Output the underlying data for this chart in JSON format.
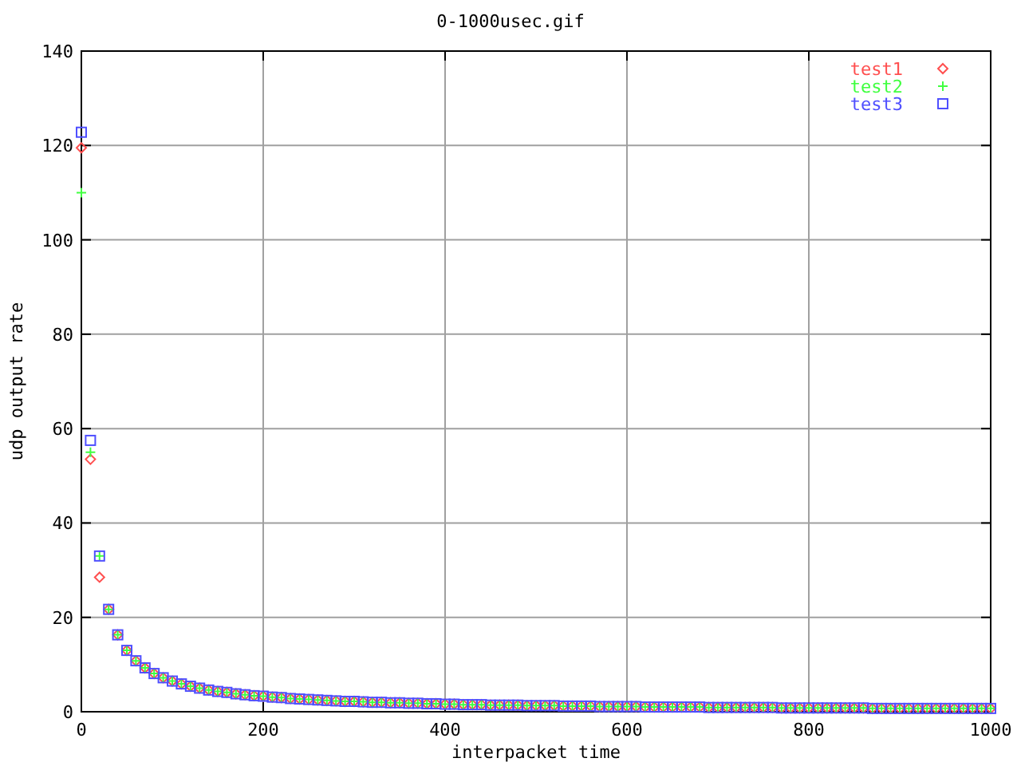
{
  "chart_data": {
    "type": "scatter",
    "title": "0-1000usec.gif",
    "xlabel": "interpacket time",
    "ylabel": "udp output rate",
    "x": [
      0,
      10,
      20,
      30,
      40,
      50,
      60,
      70,
      80,
      90,
      100,
      110,
      120,
      130,
      140,
      150,
      160,
      170,
      180,
      190,
      200,
      210,
      220,
      230,
      240,
      250,
      260,
      270,
      280,
      290,
      300,
      310,
      320,
      330,
      340,
      350,
      360,
      370,
      380,
      390,
      400,
      410,
      420,
      430,
      440,
      450,
      460,
      470,
      480,
      490,
      500,
      510,
      520,
      530,
      540,
      550,
      560,
      570,
      580,
      590,
      600,
      610,
      620,
      630,
      640,
      650,
      660,
      670,
      680,
      690,
      700,
      710,
      720,
      730,
      740,
      750,
      760,
      770,
      780,
      790,
      800,
      810,
      820,
      830,
      840,
      850,
      860,
      870,
      880,
      890,
      900,
      910,
      920,
      930,
      940,
      950,
      960,
      970,
      980,
      990,
      1000
    ],
    "series": [
      {
        "name": "test1",
        "color": "#ff4f4f",
        "marker": "diamond",
        "values": [
          119.5,
          53.5,
          28.5,
          21.7,
          16.3,
          13.0,
          10.8,
          9.3,
          8.1,
          7.2,
          6.5,
          5.9,
          5.4,
          5.0,
          4.6,
          4.3,
          4.1,
          3.8,
          3.6,
          3.4,
          3.3,
          3.1,
          3.0,
          2.8,
          2.7,
          2.6,
          2.5,
          2.4,
          2.3,
          2.2,
          2.2,
          2.1,
          2.0,
          2.0,
          1.9,
          1.9,
          1.8,
          1.8,
          1.7,
          1.7,
          1.6,
          1.6,
          1.5,
          1.5,
          1.5,
          1.4,
          1.4,
          1.4,
          1.4,
          1.3,
          1.3,
          1.3,
          1.3,
          1.2,
          1.2,
          1.2,
          1.2,
          1.1,
          1.1,
          1.1,
          1.1,
          1.1,
          1.0,
          1.0,
          1.0,
          1.0,
          1.0,
          1.0,
          1.0,
          0.9,
          0.9,
          0.9,
          0.9,
          0.9,
          0.9,
          0.9,
          0.9,
          0.8,
          0.8,
          0.8,
          0.8,
          0.8,
          0.8,
          0.8,
          0.8,
          0.8,
          0.8,
          0.7,
          0.7,
          0.7,
          0.7,
          0.7,
          0.7,
          0.7,
          0.7,
          0.7,
          0.7,
          0.7,
          0.7,
          0.7,
          0.7
        ]
      },
      {
        "name": "test2",
        "color": "#40ff40",
        "marker": "cross",
        "values": [
          110,
          55,
          33,
          21.7,
          16.3,
          13.0,
          10.8,
          9.3,
          8.1,
          7.2,
          6.5,
          5.9,
          5.4,
          5.0,
          4.6,
          4.3,
          4.1,
          3.8,
          3.6,
          3.4,
          3.3,
          3.1,
          3.0,
          2.8,
          2.7,
          2.6,
          2.5,
          2.4,
          2.3,
          2.2,
          2.2,
          2.1,
          2.0,
          2.0,
          1.9,
          1.9,
          1.8,
          1.8,
          1.7,
          1.7,
          1.6,
          1.6,
          1.5,
          1.5,
          1.5,
          1.4,
          1.4,
          1.4,
          1.4,
          1.3,
          1.3,
          1.3,
          1.3,
          1.2,
          1.2,
          1.2,
          1.2,
          1.1,
          1.1,
          1.1,
          1.1,
          1.1,
          1.0,
          1.0,
          1.0,
          1.0,
          1.0,
          1.0,
          1.0,
          0.9,
          0.9,
          0.9,
          0.9,
          0.9,
          0.9,
          0.9,
          0.9,
          0.8,
          0.8,
          0.8,
          0.8,
          0.8,
          0.8,
          0.8,
          0.8,
          0.8,
          0.8,
          0.7,
          0.7,
          0.7,
          0.7,
          0.7,
          0.7,
          0.7,
          0.7,
          0.7,
          0.7,
          0.7,
          0.7,
          0.7,
          0.7
        ]
      },
      {
        "name": "test3",
        "color": "#4f4fff",
        "marker": "square",
        "values": [
          122.8,
          57.5,
          33,
          21.7,
          16.3,
          13.0,
          10.8,
          9.3,
          8.1,
          7.2,
          6.5,
          5.9,
          5.4,
          5.0,
          4.6,
          4.3,
          4.1,
          3.8,
          3.6,
          3.4,
          3.3,
          3.1,
          3.0,
          2.8,
          2.7,
          2.6,
          2.5,
          2.4,
          2.3,
          2.2,
          2.2,
          2.1,
          2.0,
          2.0,
          1.9,
          1.9,
          1.8,
          1.8,
          1.7,
          1.7,
          1.6,
          1.6,
          1.5,
          1.5,
          1.5,
          1.4,
          1.4,
          1.4,
          1.4,
          1.3,
          1.3,
          1.3,
          1.3,
          1.2,
          1.2,
          1.2,
          1.2,
          1.1,
          1.1,
          1.1,
          1.1,
          1.1,
          1.0,
          1.0,
          1.0,
          1.0,
          1.0,
          1.0,
          1.0,
          0.9,
          0.9,
          0.9,
          0.9,
          0.9,
          0.9,
          0.9,
          0.9,
          0.8,
          0.8,
          0.8,
          0.8,
          0.8,
          0.8,
          0.8,
          0.8,
          0.8,
          0.8,
          0.7,
          0.7,
          0.7,
          0.7,
          0.7,
          0.7,
          0.7,
          0.7,
          0.7,
          0.7,
          0.7,
          0.7,
          0.7,
          0.7
        ]
      }
    ],
    "xlim": [
      0,
      1000
    ],
    "xticks": [
      0,
      200,
      400,
      600,
      800,
      1000
    ],
    "ylim": [
      0,
      140
    ],
    "yticks": [
      0,
      20,
      40,
      60,
      80,
      100,
      120,
      140
    ],
    "grid": true,
    "legend": "top right"
  }
}
